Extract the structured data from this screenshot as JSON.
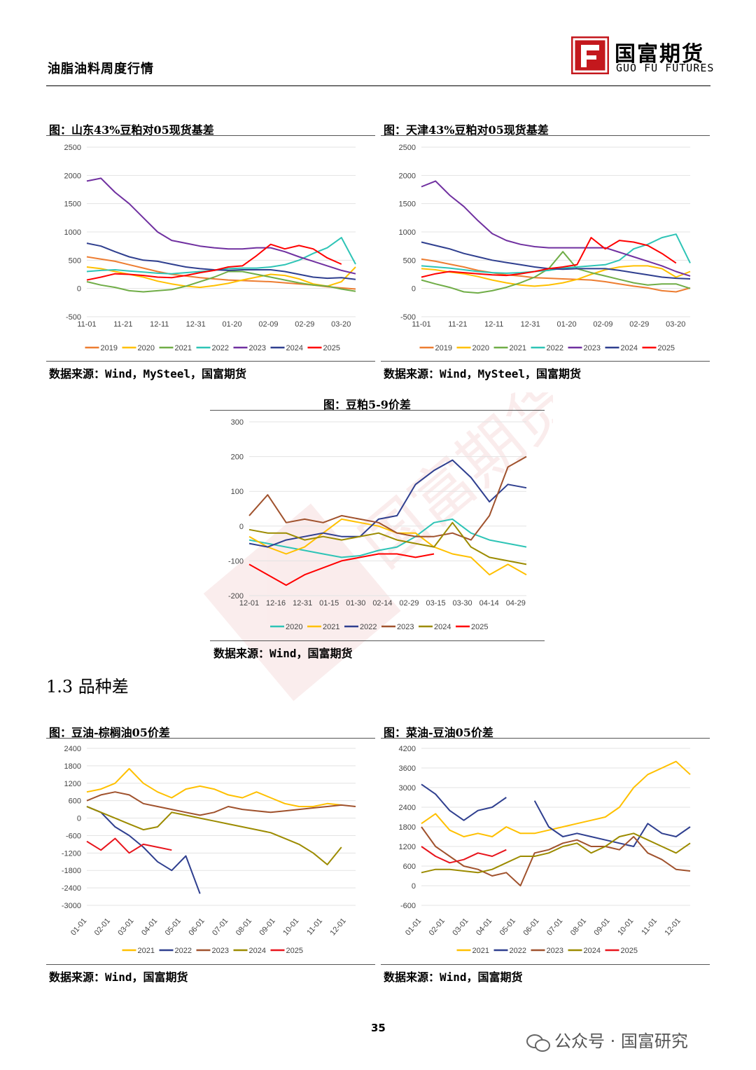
{
  "header": {
    "report_title": "油脂油料周度行情",
    "logo_cn": "国富期货",
    "logo_en": "GUO FU FUTURES"
  },
  "section_title": "1.3 品种差",
  "page_number": "35",
  "footer_text": "公众号 · 国富研究",
  "colors": {
    "2019": "#ed7d31",
    "2020": "#ffc000",
    "2021": "#70ad47",
    "2022": "#2ec4b6",
    "2023": "#7030a0",
    "2024": "#2f3f8f",
    "2025": "#ff0000",
    "brown": "#a0522d",
    "olive": "#9c8b00",
    "yellow": "#f2c200",
    "navy": "#24409a",
    "red": "#e8141c"
  },
  "charts": [
    {
      "id": "sd",
      "title": "图：山东43%豆粕对05现货基差",
      "source": "数据来源：Wind，MySteel，国富期货",
      "chart_data": {
        "type": "line",
        "x_ticks": [
          "11-01",
          "11-21",
          "12-11",
          "12-31",
          "01-20",
          "02-09",
          "02-29",
          "03-20"
        ],
        "y_ticks": [
          2500,
          2000,
          1500,
          1000,
          500,
          0,
          -500
        ],
        "ylim": [
          -500,
          2500
        ],
        "series": [
          {
            "name": "2019",
            "color": "#ed7d31",
            "values": [
              560,
              520,
              480,
              420,
              360,
              300,
              250,
              220,
              190,
              170,
              150,
              140,
              130,
              120,
              100,
              80,
              60,
              30,
              10,
              -10
            ]
          },
          {
            "name": "2020",
            "color": "#ffc000",
            "values": [
              380,
              350,
              300,
              250,
              200,
              130,
              80,
              40,
              20,
              50,
              90,
              150,
              200,
              250,
              230,
              170,
              80,
              40,
              120,
              380
            ]
          },
          {
            "name": "2021",
            "color": "#70ad47",
            "values": [
              120,
              60,
              20,
              -40,
              -60,
              -40,
              -20,
              40,
              120,
              200,
              300,
              300,
              250,
              200,
              150,
              100,
              60,
              40,
              -10,
              -50
            ]
          },
          {
            "name": "2022",
            "color": "#2ec4b6",
            "values": [
              300,
              320,
              330,
              310,
              290,
              270,
              260,
              280,
              300,
              320,
              350,
              360,
              360,
              380,
              420,
              500,
              620,
              720,
              900,
              430
            ]
          },
          {
            "name": "2023",
            "color": "#7030a0",
            "values": [
              1900,
              1950,
              1700,
              1500,
              1250,
              1000,
              850,
              800,
              750,
              720,
              700,
              700,
              720,
              720,
              650,
              560,
              480,
              400,
              320,
              260
            ]
          },
          {
            "name": "2024",
            "color": "#2f3f8f",
            "values": [
              800,
              750,
              650,
              560,
              500,
              480,
              430,
              380,
              350,
              330,
              320,
              330,
              330,
              330,
              300,
              250,
              200,
              180,
              190,
              160
            ]
          },
          {
            "name": "2025",
            "color": "#ff0000",
            "values": [
              150,
              200,
              260,
              250,
              230,
              200,
              190,
              230,
              280,
              320,
              380,
              400,
              580,
              780,
              700,
              760,
              700,
              540,
              430
            ]
          }
        ]
      }
    },
    {
      "id": "tj",
      "title": "图：天津43%豆粕对05现货基差",
      "source": "数据来源：Wind，MySteel，国富期货",
      "chart_data": {
        "type": "line",
        "x_ticks": [
          "11-01",
          "11-21",
          "12-11",
          "12-31",
          "01-20",
          "02-09",
          "02-29",
          "03-20"
        ],
        "y_ticks": [
          2500,
          2000,
          1500,
          1000,
          500,
          0,
          -500
        ],
        "ylim": [
          -500,
          2500
        ],
        "series": [
          {
            "name": "2019",
            "color": "#ed7d31",
            "values": [
              520,
              480,
              430,
              380,
              320,
              280,
              240,
              220,
              190,
              180,
              170,
              160,
              150,
              120,
              80,
              40,
              10,
              -40,
              -60,
              10
            ]
          },
          {
            "name": "2020",
            "color": "#ffc000",
            "values": [
              350,
              330,
              290,
              260,
              210,
              150,
              100,
              60,
              40,
              60,
              100,
              160,
              250,
              330,
              380,
              400,
              400,
              350,
              200,
              300
            ]
          },
          {
            "name": "2021",
            "color": "#70ad47",
            "values": [
              150,
              80,
              20,
              -60,
              -80,
              -40,
              20,
              100,
              200,
              350,
              650,
              350,
              280,
              220,
              160,
              100,
              60,
              80,
              80,
              0
            ]
          },
          {
            "name": "2022",
            "color": "#2ec4b6",
            "values": [
              400,
              380,
              360,
              330,
              300,
              280,
              270,
              280,
              300,
              320,
              360,
              380,
              400,
              420,
              500,
              700,
              780,
              900,
              960,
              450
            ]
          },
          {
            "name": "2023",
            "color": "#7030a0",
            "values": [
              1800,
              1900,
              1650,
              1450,
              1200,
              970,
              850,
              780,
              740,
              720,
              720,
              720,
              720,
              720,
              640,
              560,
              480,
              400,
              300,
              220
            ]
          },
          {
            "name": "2024",
            "color": "#2f3f8f",
            "values": [
              820,
              760,
              700,
              620,
              560,
              500,
              460,
              420,
              380,
              350,
              340,
              350,
              350,
              350,
              320,
              280,
              240,
              200,
              180,
              170
            ]
          },
          {
            "name": "2025",
            "color": "#ff0000",
            "values": [
              200,
              260,
              300,
              280,
              260,
              240,
              230,
              260,
              300,
              350,
              380,
              420,
              900,
              700,
              850,
              820,
              760,
              620,
              450
            ]
          }
        ]
      }
    },
    {
      "id": "sbm59",
      "title": "图：豆粕5-9价差",
      "source": "数据来源：Wind，国富期货",
      "chart_data": {
        "type": "line",
        "x_ticks": [
          "12-01",
          "12-16",
          "12-31",
          "01-15",
          "01-30",
          "02-14",
          "02-29",
          "03-15",
          "03-30",
          "04-14",
          "04-29"
        ],
        "y_ticks": [
          300,
          200,
          100,
          0,
          -100,
          -200
        ],
        "ylim": [
          -200,
          300
        ],
        "series": [
          {
            "name": "2020",
            "color": "#2ec4b6",
            "values": [
              -40,
              -50,
              -60,
              -70,
              -80,
              -90,
              -85,
              -70,
              -60,
              -30,
              10,
              20,
              -20,
              -40,
              -50,
              -60
            ]
          },
          {
            "name": "2021",
            "color": "#ffc000",
            "values": [
              -30,
              -60,
              -80,
              -60,
              -20,
              20,
              10,
              0,
              -20,
              -20,
              -60,
              -80,
              -90,
              -140,
              -110,
              -140
            ]
          },
          {
            "name": "2022",
            "color": "#2f3f8f",
            "values": [
              -50,
              -60,
              -40,
              -30,
              -20,
              -30,
              -30,
              20,
              30,
              120,
              160,
              190,
              140,
              70,
              120,
              110
            ]
          },
          {
            "name": "2023",
            "color": "#a0522d",
            "values": [
              30,
              90,
              10,
              20,
              10,
              30,
              20,
              10,
              -20,
              -30,
              -30,
              -20,
              -40,
              30,
              170,
              200
            ]
          },
          {
            "name": "2024",
            "color": "#9c8b00",
            "values": [
              -10,
              -20,
              -20,
              -40,
              -30,
              -40,
              -30,
              -20,
              -40,
              -50,
              -60,
              10,
              -60,
              -90,
              -100,
              -110
            ]
          },
          {
            "name": "2025",
            "color": "#ff0000",
            "values": [
              -110,
              -140,
              -170,
              -140,
              -120,
              -100,
              -90,
              -80,
              -80,
              -90,
              -80
            ]
          }
        ]
      }
    },
    {
      "id": "ypo",
      "title": "图：豆油-棕榈油05价差",
      "source": "数据来源：Wind，国富期货",
      "chart_data": {
        "type": "line",
        "x_ticks": [
          "01-01",
          "02-01",
          "03-01",
          "04-01",
          "05-01",
          "06-01",
          "07-01",
          "08-01",
          "09-01",
          "10-01",
          "11-01",
          "12-01"
        ],
        "y_ticks": [
          2400,
          1800,
          1200,
          600,
          0,
          -600,
          -1200,
          -1800,
          -2400,
          -3000
        ],
        "ylim": [
          -3000,
          2400
        ],
        "series": [
          {
            "name": "2021",
            "color": "#ffc000",
            "values": [
              900,
              1000,
              1200,
              1700,
              1200,
              900,
              700,
              1000,
              1100,
              1000,
              800,
              700,
              900,
              700,
              500,
              400,
              400,
              500,
              450
            ]
          },
          {
            "name": "2022",
            "color": "#2f3f8f",
            "values": [
              400,
              200,
              -300,
              -600,
              -1000,
              -1500,
              -1800,
              -1300,
              -2600
            ]
          },
          {
            "name": "2023",
            "color": "#a0522d",
            "values": [
              600,
              800,
              900,
              800,
              500,
              400,
              300,
              200,
              100,
              200,
              400,
              300,
              250,
              200,
              250,
              300,
              350,
              400,
              450,
              400
            ]
          },
          {
            "name": "2024",
            "color": "#9c8b00",
            "values": [
              400,
              200,
              0,
              -200,
              -400,
              -300,
              200,
              100,
              0,
              -100,
              -200,
              -300,
              -400,
              -500,
              -700,
              -900,
              -1200,
              -1600,
              -1000
            ]
          },
          {
            "name": "2025",
            "color": "#e8141c",
            "values": [
              -800,
              -1100,
              -700,
              -1200,
              -900,
              -1000,
              -1100
            ]
          }
        ]
      }
    },
    {
      "id": "rmy",
      "title": "图：菜油-豆油05价差",
      "source": "数据来源：Wind，国富期货",
      "chart_data": {
        "type": "line",
        "x_ticks": [
          "01-01",
          "02-01",
          "03-01",
          "04-01",
          "05-01",
          "06-01",
          "07-01",
          "08-01",
          "09-01",
          "10-01",
          "11-01",
          "12-01"
        ],
        "y_ticks": [
          4200,
          3600,
          3000,
          2400,
          1800,
          1200,
          600,
          0,
          -600
        ],
        "ylim": [
          -600,
          4200
        ],
        "series": [
          {
            "name": "2021",
            "color": "#ffc000",
            "values": [
              1900,
              2200,
              1700,
              1500,
              1600,
              1500,
              1800,
              1600,
              1600,
              1700,
              1800,
              1900,
              2000,
              2100,
              2400,
              3000,
              3400,
              3600,
              3800,
              3400
            ]
          },
          {
            "name": "2022",
            "color": "#2f3f8f",
            "values": [
              3100,
              2800,
              2300,
              2000,
              2300,
              2400,
              2700,
              null,
              2600,
              1800,
              1500,
              1600,
              1500,
              1400,
              1300,
              1200,
              1900,
              1600,
              1500,
              1800
            ]
          },
          {
            "name": "2023",
            "color": "#a0522d",
            "values": [
              1800,
              1200,
              900,
              600,
              500,
              300,
              400,
              0,
              1000,
              1100,
              1300,
              1400,
              1200,
              1200,
              1100,
              1500,
              1000,
              800,
              500,
              450
            ]
          },
          {
            "name": "2024",
            "color": "#9c8b00",
            "values": [
              400,
              500,
              500,
              450,
              400,
              500,
              700,
              900,
              900,
              1000,
              1200,
              1300,
              1000,
              1200,
              1500,
              1600,
              1400,
              1200,
              1000,
              1300
            ]
          },
          {
            "name": "2025",
            "color": "#e8141c",
            "values": [
              1200,
              900,
              700,
              800,
              1000,
              900,
              1100
            ]
          }
        ]
      }
    }
  ]
}
